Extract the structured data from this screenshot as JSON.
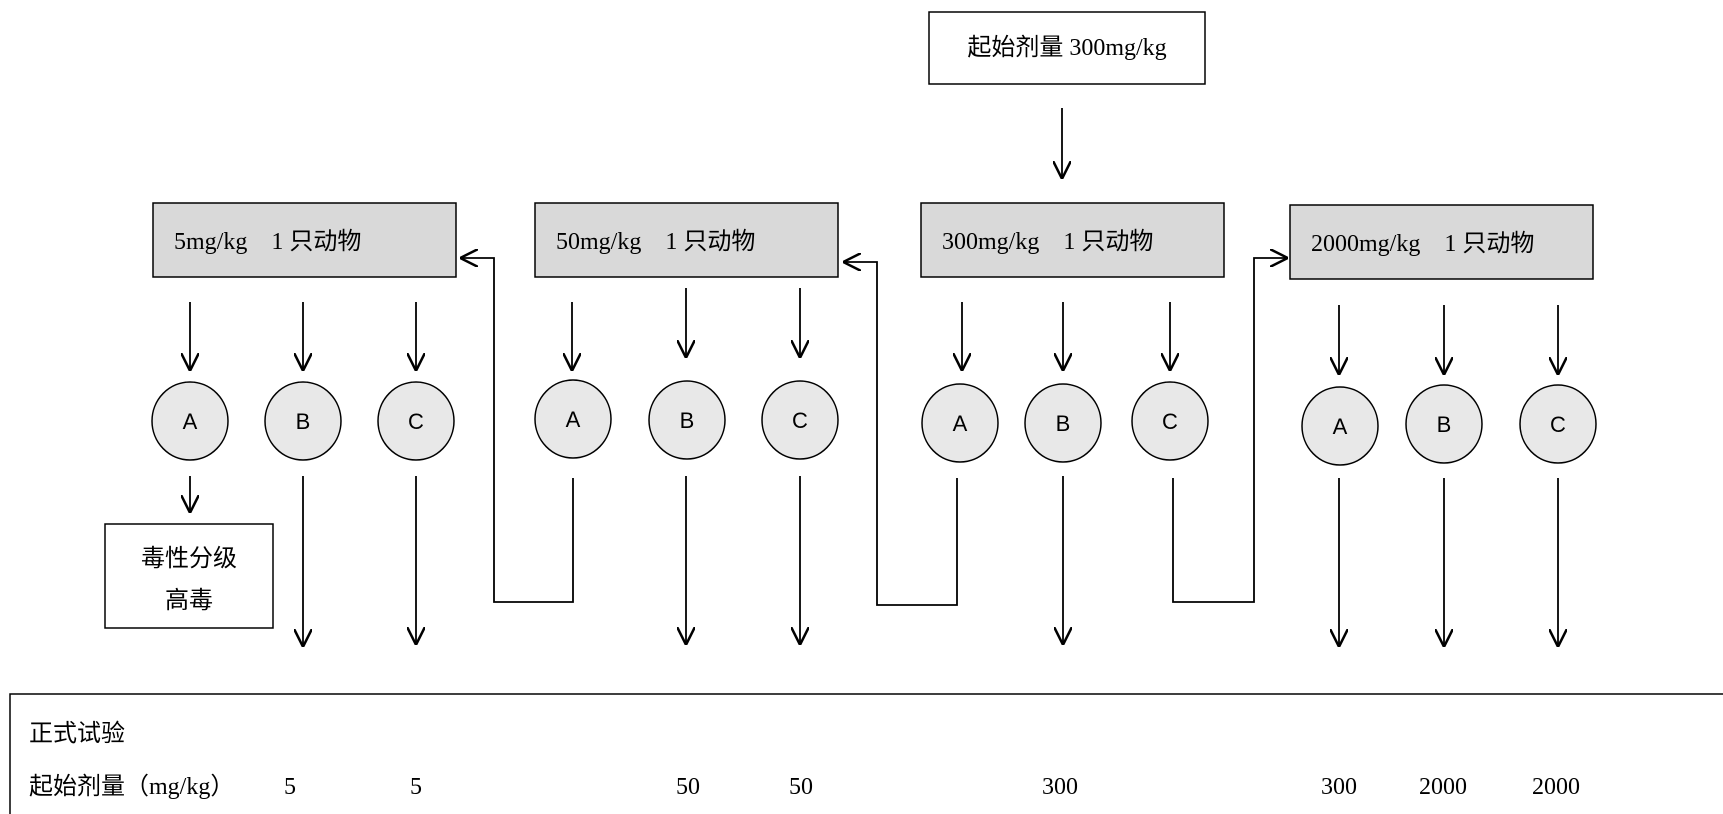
{
  "start_box": {
    "label": "起始剂量 300mg/kg"
  },
  "dose_boxes": [
    {
      "label": "5mg/kg　1 只动物"
    },
    {
      "label": "50mg/kg　1 只动物"
    },
    {
      "label": "300mg/kg　1 只动物"
    },
    {
      "label": "2000mg/kg　1 只动物"
    }
  ],
  "outcome_nodes": [
    {
      "label": "A"
    },
    {
      "label": "B"
    },
    {
      "label": "C"
    },
    {
      "label": "A"
    },
    {
      "label": "B"
    },
    {
      "label": "C"
    },
    {
      "label": "A"
    },
    {
      "label": "B"
    },
    {
      "label": "C"
    },
    {
      "label": "A"
    },
    {
      "label": "B"
    },
    {
      "label": "C"
    }
  ],
  "toxicity_box": {
    "line1": "毒性分级",
    "line2": "高毒"
  },
  "summary": {
    "title": "正式试验",
    "row_label": "起始剂量（mg/kg）",
    "values": [
      "5",
      "5",
      "50",
      "50",
      "300",
      "300",
      "2000",
      "2000"
    ]
  },
  "colors": {
    "box_fill": "#d9d9d9",
    "node_fill": "#e8e8e8",
    "stroke": "#000000"
  }
}
